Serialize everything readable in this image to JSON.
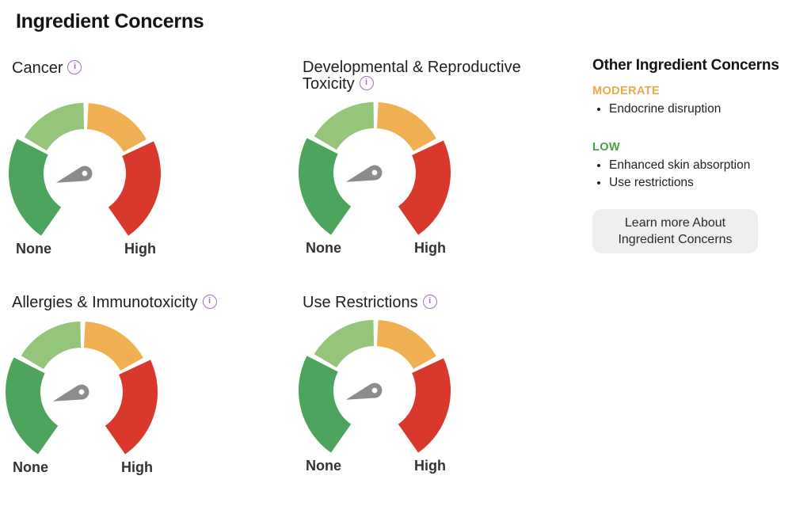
{
  "page_title": "Ingredient Concerns",
  "info_icon_glyph": "i",
  "info_icon_color": "#a86bc6",
  "needle_color": "#8c8c8c",
  "chart_data": [
    {
      "type": "gauge",
      "title": "Cancer",
      "min_label": "None",
      "max_label": "High",
      "segments": [
        {
          "level": "none",
          "color": "#4da45c"
        },
        {
          "level": "low",
          "color": "#95c47b"
        },
        {
          "level": "moderate",
          "color": "#f0b052"
        },
        {
          "level": "high",
          "color": "#d8392c"
        }
      ],
      "needle_bearing_deg": 252,
      "indicated_level": "low"
    },
    {
      "type": "gauge",
      "title": "Developmental & Reproductive Toxicity",
      "min_label": "None",
      "max_label": "High",
      "segments": [
        {
          "level": "none",
          "color": "#4da45c"
        },
        {
          "level": "low",
          "color": "#95c47b"
        },
        {
          "level": "moderate",
          "color": "#f0b052"
        },
        {
          "level": "high",
          "color": "#d8392c"
        }
      ],
      "needle_bearing_deg": 252,
      "indicated_level": "low"
    },
    {
      "type": "gauge",
      "title": "Allergies & Immunotoxicity",
      "min_label": "None",
      "max_label": "High",
      "segments": [
        {
          "level": "none",
          "color": "#4da45c"
        },
        {
          "level": "low",
          "color": "#95c47b"
        },
        {
          "level": "moderate",
          "color": "#f0b052"
        },
        {
          "level": "high",
          "color": "#d8392c"
        }
      ],
      "needle_bearing_deg": 252,
      "indicated_level": "low"
    },
    {
      "type": "gauge",
      "title": "Use Restrictions",
      "min_label": "None",
      "max_label": "High",
      "segments": [
        {
          "level": "none",
          "color": "#4da45c"
        },
        {
          "level": "low",
          "color": "#95c47b"
        },
        {
          "level": "moderate",
          "color": "#f0b052"
        },
        {
          "level": "high",
          "color": "#d8392c"
        }
      ],
      "needle_bearing_deg": 252,
      "indicated_level": "low"
    }
  ],
  "other_concerns": {
    "heading": "Other Ingredient Concerns",
    "groups": [
      {
        "level": "MODERATE",
        "color": "#f0a64c",
        "items": [
          "Endocrine disruption"
        ]
      },
      {
        "level": "LOW",
        "color": "#43a047",
        "items": [
          "Enhanced skin absorption",
          "Use restrictions"
        ]
      }
    ],
    "learn_more_button": "Learn more About Ingredient Concerns"
  }
}
